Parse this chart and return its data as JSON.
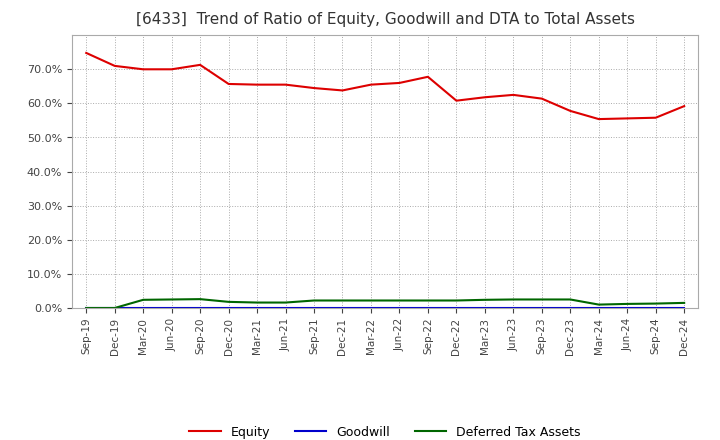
{
  "title": "[6433]  Trend of Ratio of Equity, Goodwill and DTA to Total Assets",
  "title_fontsize": 11,
  "background_color": "#ffffff",
  "grid_color": "#aaaaaa",
  "x_labels": [
    "Sep-19",
    "Dec-19",
    "Mar-20",
    "Jun-20",
    "Sep-20",
    "Dec-20",
    "Mar-21",
    "Jun-21",
    "Sep-21",
    "Dec-21",
    "Mar-22",
    "Jun-22",
    "Sep-22",
    "Dec-22",
    "Mar-23",
    "Jun-23",
    "Sep-23",
    "Dec-23",
    "Mar-24",
    "Jun-24",
    "Sep-24",
    "Dec-24"
  ],
  "equity": [
    0.748,
    0.71,
    0.7,
    0.7,
    0.713,
    0.657,
    0.655,
    0.655,
    0.645,
    0.638,
    0.655,
    0.66,
    0.678,
    0.608,
    0.618,
    0.625,
    0.614,
    0.578,
    0.554,
    0.556,
    0.558,
    0.592
  ],
  "goodwill": [
    0.0,
    0.0,
    0.0,
    0.0,
    0.0,
    0.0,
    0.0,
    0.0,
    0.0,
    0.0,
    0.0,
    0.0,
    0.0,
    0.0,
    0.0,
    0.0,
    0.0,
    0.0,
    0.0,
    0.0,
    0.0,
    0.0
  ],
  "dta": [
    0.0,
    0.0,
    0.024,
    0.025,
    0.026,
    0.018,
    0.016,
    0.016,
    0.022,
    0.022,
    0.022,
    0.022,
    0.022,
    0.022,
    0.024,
    0.025,
    0.025,
    0.025,
    0.01,
    0.012,
    0.013,
    0.015
  ],
  "equity_color": "#dd0000",
  "goodwill_color": "#0000cc",
  "dta_color": "#006600",
  "ylim": [
    0.0,
    0.8
  ],
  "yticks": [
    0.0,
    0.1,
    0.2,
    0.3,
    0.4,
    0.5,
    0.6,
    0.7
  ],
  "legend_labels": [
    "Equity",
    "Goodwill",
    "Deferred Tax Assets"
  ],
  "legend_colors": [
    "#dd0000",
    "#0000cc",
    "#006600"
  ]
}
